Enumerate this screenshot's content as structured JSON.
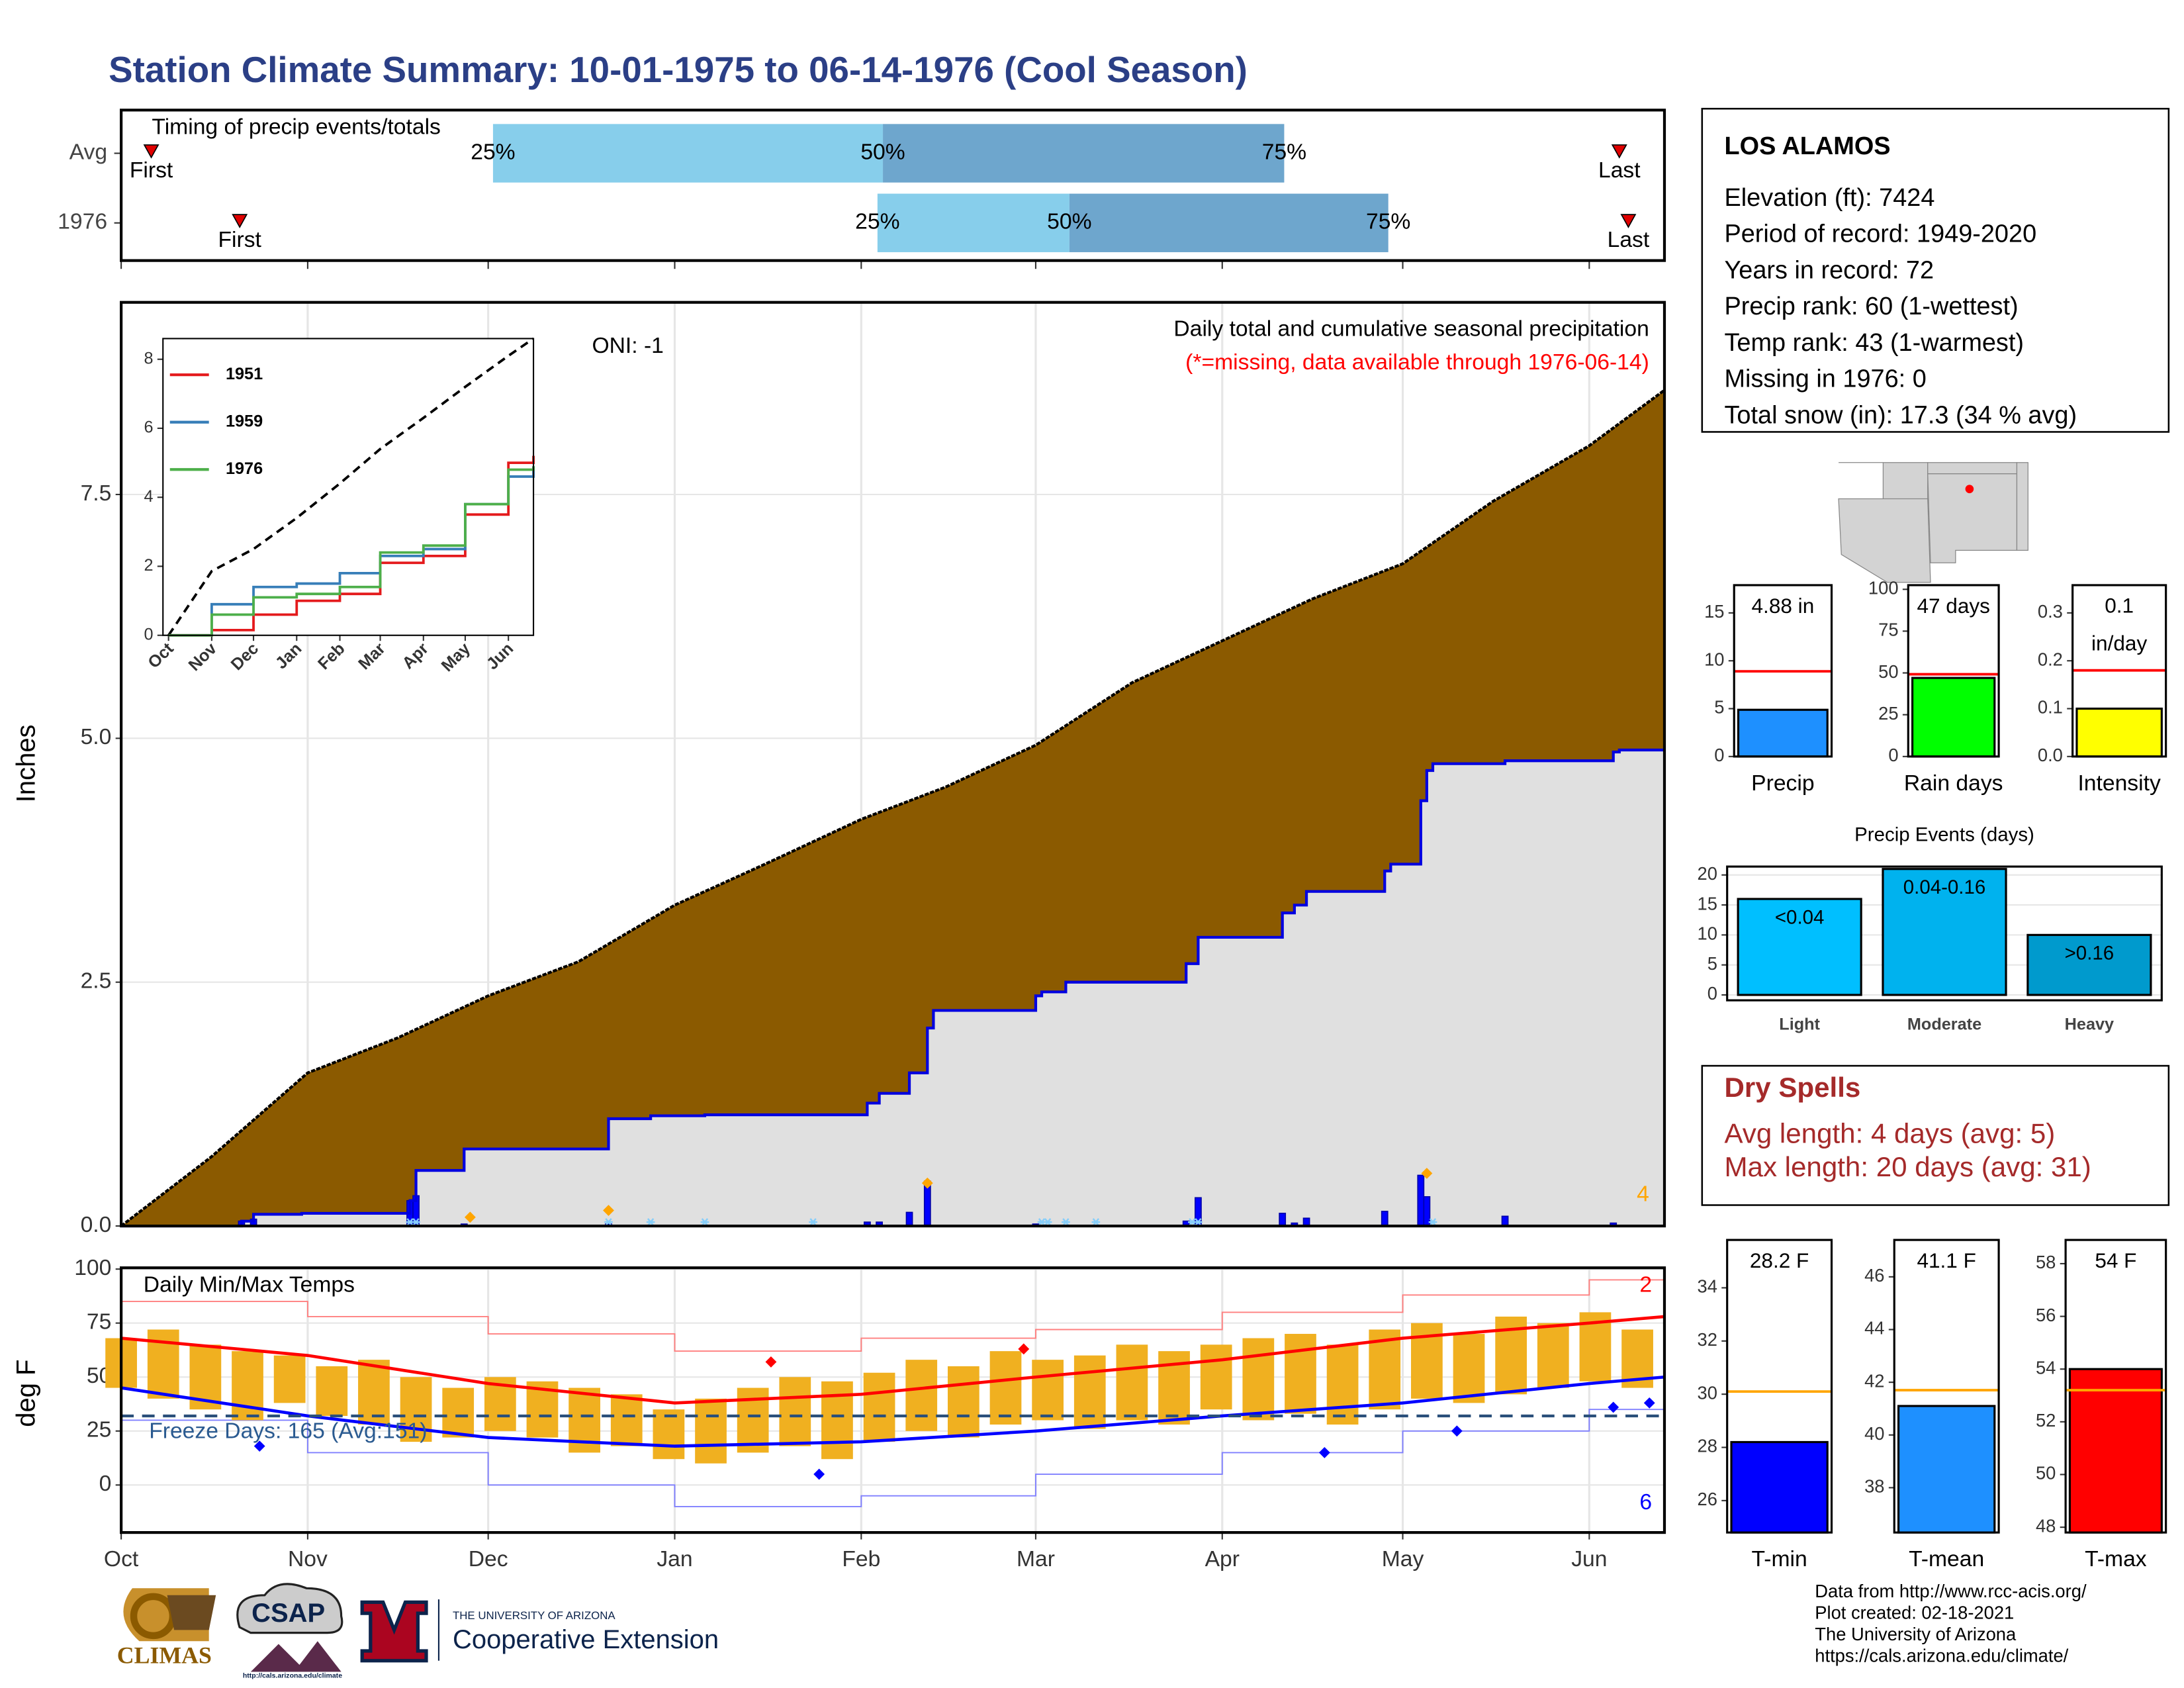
{
  "title": "Station Climate Summary: 10-01-1975 to 06-14-1976 (Cool Season)",
  "station": {
    "name": "LOS ALAMOS",
    "lines": [
      "Elevation (ft): 7424",
      "Period of record: 1949-2020",
      "Years in record: 72",
      "Precip rank: 60 (1-wettest)",
      "Temp rank: 43 (1-warmest)",
      "Missing in 1976: 0",
      "Total snow (in): 17.3 (34 % avg)"
    ]
  },
  "dry_spells": {
    "title": "Dry Spells",
    "lines": [
      "Avg length: 4 days (avg: 5)",
      "Max length: 20 days (avg: 31)"
    ]
  },
  "footer": [
    "Data from http://www.rcc-acis.org/",
    "Plot created: 02-18-2021",
    "The University of Arizona",
    "https://cals.arizona.edu/climate/"
  ],
  "logos": {
    "climas": "CLIMAS",
    "csap": "CSAP",
    "csap_url": "http://cals.arizona.edu/climate",
    "ua_small": "THE UNIVERSITY OF ARIZONA",
    "ua_big": "Cooperative Extension"
  },
  "chart_data": [
    {
      "type": "timing",
      "title": "Timing of precip events/totals",
      "categories": [
        "Avg",
        "1976"
      ],
      "xlim": [
        0,
        256.5
      ],
      "rows": [
        {
          "first": 5,
          "quartiles": [
            61.8,
            126.6,
            193.3
          ],
          "last": 249
        },
        {
          "first": 19.7,
          "quartiles": [
            125.7,
            157.6,
            210.6
          ],
          "last": 250.5
        }
      ],
      "quartile_labels": [
        "25%",
        "50%",
        "75%"
      ],
      "first_label": "First",
      "last_label": "Last",
      "colors": [
        "#87ceeb",
        "#6ea6cd"
      ],
      "marker_color": "#e00000"
    },
    {
      "type": "area",
      "title": "Daily total and cumulative seasonal precipitation",
      "subtitle": "(*=missing, data available through 1976-06-14)",
      "oni": "ONI: -1",
      "snow_count": 4,
      "ylabel": "Inches",
      "xlim": [
        0,
        256.5
      ],
      "ylim": [
        0,
        9.47
      ],
      "xticks": [
        0,
        31,
        61,
        92,
        123,
        152,
        183,
        213,
        244
      ],
      "yticks": [
        {
          "value": 0,
          "label": "0.0"
        },
        2.5,
        {
          "value": 5,
          "label": "5.0"
        },
        7.5
      ],
      "grid": true,
      "average": {
        "color": "#8b5a00",
        "x": [
          0,
          15,
          31,
          46,
          61,
          76,
          92,
          107,
          123,
          137,
          152,
          168,
          183,
          198,
          213,
          228,
          244,
          256.5
        ],
        "values": [
          0,
          0.71,
          1.57,
          1.93,
          2.36,
          2.71,
          3.29,
          3.71,
          4.17,
          4.5,
          4.93,
          5.57,
          6.0,
          6.43,
          6.79,
          7.43,
          8.0,
          8.57
        ]
      },
      "cumulative": {
        "color": "#0000e0",
        "fill": "#e0e0e0",
        "x": [
          0,
          20,
          22,
          30,
          48,
          49,
          57,
          81,
          88,
          97,
          124,
          126,
          131,
          134,
          135,
          152,
          153,
          157,
          177,
          179,
          193,
          195,
          197,
          210,
          211,
          216,
          217,
          218,
          230,
          248,
          249
        ],
        "values": [
          0,
          0.05,
          0.12,
          0.13,
          0.26,
          0.57,
          0.79,
          1.1,
          1.13,
          1.14,
          1.26,
          1.36,
          1.57,
          2.03,
          2.21,
          2.36,
          2.4,
          2.5,
          2.69,
          2.96,
          3.21,
          3.29,
          3.43,
          3.64,
          3.71,
          4.36,
          4.67,
          4.74,
          4.77,
          4.86,
          4.88
        ]
      },
      "daily": {
        "color": "#0000ff",
        "x": [
          20,
          22,
          48,
          49,
          57,
          81,
          124,
          126,
          131,
          134,
          152,
          177,
          179,
          193,
          195,
          197,
          210,
          216,
          217,
          230,
          248
        ],
        "values": [
          0.05,
          0.07,
          0.26,
          0.31,
          0.02,
          0.02,
          0.04,
          0.04,
          0.14,
          0.46,
          0.02,
          0.05,
          0.29,
          0.13,
          0.03,
          0.08,
          0.15,
          0.52,
          0.3,
          0.1,
          0.03
        ]
      },
      "snow": {
        "color": "#ffa500",
        "x": [
          58,
          81,
          134,
          217
        ],
        "values": [
          0.09,
          0.16,
          0.44,
          0.54
        ]
      },
      "missing": {
        "color": "#87cefa",
        "x": [
          48,
          49,
          81,
          88,
          97,
          115,
          153,
          154,
          157,
          162,
          178,
          179,
          218
        ],
        "values": [
          0.04,
          0.04,
          0.04,
          0.04,
          0.04,
          0.04,
          0.04,
          0.04,
          0.04,
          0.04,
          0.04,
          0.04,
          0.04
        ]
      }
    },
    {
      "type": "line",
      "xlim": [
        -4,
        262
      ],
      "ylim": [
        0,
        8.6
      ],
      "xticks": [
        {
          "value": 0,
          "label": "Oct"
        },
        {
          "value": 31,
          "label": "Nov"
        },
        {
          "value": 61,
          "label": "Dec"
        },
        {
          "value": 92,
          "label": "Jan"
        },
        {
          "value": 123,
          "label": "Feb"
        },
        {
          "value": 152,
          "label": "Mar"
        },
        {
          "value": 183,
          "label": "Apr"
        },
        {
          "value": 213,
          "label": "May"
        },
        {
          "value": 244,
          "label": "Jun"
        }
      ],
      "yticks": [
        0,
        2,
        4,
        6,
        8
      ],
      "average": {
        "color": "#000000",
        "x": [
          0,
          31,
          61,
          92,
          123,
          152,
          183,
          213,
          244,
          262
        ],
        "values": [
          0,
          1.86,
          2.5,
          3.4,
          4.4,
          5.4,
          6.3,
          7.2,
          8.1,
          8.6
        ]
      },
      "series": [
        {
          "name": "1951",
          "color": "#e41a1c",
          "x": [
            0,
            31,
            61,
            92,
            123,
            152,
            183,
            213,
            244,
            262
          ],
          "values": [
            0,
            0.15,
            0.6,
            1.0,
            1.2,
            2.1,
            2.3,
            3.5,
            5.0,
            5.2
          ]
        },
        {
          "name": "1959",
          "color": "#377eb8",
          "x": [
            0,
            31,
            61,
            92,
            123,
            152,
            183,
            213,
            244,
            262
          ],
          "values": [
            0,
            0.9,
            1.4,
            1.5,
            1.8,
            2.3,
            2.5,
            3.8,
            4.6,
            4.9
          ]
        },
        {
          "name": "1976",
          "color": "#4daf4a",
          "x": [
            0,
            31,
            61,
            92,
            123,
            152,
            183,
            213,
            244,
            262
          ],
          "values": [
            0,
            0.6,
            1.1,
            1.2,
            1.4,
            2.4,
            2.6,
            3.8,
            4.8,
            4.9
          ]
        }
      ]
    },
    {
      "type": "temperature",
      "title": "Daily Min/Max Temps",
      "freeze_label": "Freeze Days: 165 (Avg:151)",
      "freeze_line": 32,
      "record_high_count": 2,
      "record_low_count": 6,
      "ylabel": "deg F",
      "xlim": [
        0,
        256.5
      ],
      "ylim": [
        -22,
        100.6
      ],
      "xticks": [
        {
          "value": 0,
          "label": "Oct"
        },
        {
          "value": 31,
          "label": "Nov"
        },
        {
          "value": 61,
          "label": "Dec"
        },
        {
          "value": 92,
          "label": "Jan"
        },
        {
          "value": 123,
          "label": "Feb"
        },
        {
          "value": 152,
          "label": "Mar"
        },
        {
          "value": 183,
          "label": "Apr"
        },
        {
          "value": 213,
          "label": "May"
        },
        {
          "value": 244,
          "label": "Jun"
        }
      ],
      "yticks": [
        0,
        25,
        50,
        75,
        100
      ],
      "grid": true,
      "daily": {
        "color": "#f0b020",
        "x": [
          0,
          7,
          14,
          21,
          28,
          35,
          42,
          49,
          56,
          63,
          70,
          77,
          84,
          91,
          98,
          105,
          112,
          119,
          126,
          133,
          140,
          147,
          154,
          161,
          168,
          175,
          182,
          189,
          196,
          203,
          210,
          217,
          224,
          231,
          238,
          245,
          252
        ],
        "min": [
          45,
          40,
          35,
          30,
          38,
          32,
          28,
          20,
          22,
          25,
          22,
          15,
          18,
          12,
          10,
          15,
          18,
          12,
          20,
          25,
          22,
          28,
          30,
          26,
          30,
          28,
          35,
          30,
          33,
          28,
          35,
          40,
          38,
          42,
          45,
          48,
          45
        ],
        "max": [
          68,
          72,
          65,
          62,
          60,
          55,
          58,
          50,
          45,
          50,
          48,
          45,
          42,
          35,
          40,
          45,
          50,
          48,
          52,
          58,
          55,
          62,
          58,
          60,
          65,
          62,
          65,
          68,
          70,
          65,
          72,
          75,
          70,
          78,
          75,
          80,
          72
        ]
      },
      "normal_max": {
        "color": "#ff0000",
        "x": [
          0,
          31,
          61,
          92,
          123,
          152,
          183,
          213,
          244,
          256.5
        ],
        "values": [
          68,
          60,
          47,
          38,
          42,
          50,
          58,
          68,
          75,
          78
        ]
      },
      "normal_min": {
        "color": "#0000ff",
        "x": [
          0,
          31,
          61,
          92,
          123,
          152,
          183,
          213,
          244,
          256.5
        ],
        "values": [
          45,
          32,
          22,
          18,
          20,
          25,
          32,
          38,
          47,
          50
        ]
      },
      "record_max": {
        "color": "#ff8080",
        "x": [
          0,
          31,
          61,
          92,
          123,
          152,
          183,
          213,
          244,
          256.5
        ],
        "values": [
          85,
          78,
          70,
          62,
          68,
          72,
          80,
          88,
          95,
          98
        ]
      },
      "record_min": {
        "color": "#8080ff",
        "x": [
          0,
          31,
          61,
          92,
          123,
          152,
          183,
          213,
          244,
          256.5
        ],
        "values": [
          30,
          15,
          0,
          -10,
          -5,
          5,
          15,
          25,
          35,
          38
        ]
      },
      "record_highs": {
        "color": "#ff0000",
        "x": [
          108,
          150
        ],
        "values": [
          57,
          63
        ]
      },
      "record_lows": {
        "color": "#0000ff",
        "x": [
          23,
          116,
          200,
          222,
          248,
          254
        ],
        "values": [
          18,
          5,
          15,
          25,
          36,
          38
        ]
      }
    },
    {
      "type": "bar",
      "categories": [
        "Precip"
      ],
      "values": [
        4.88
      ],
      "value_labels": [
        "4.88 in"
      ],
      "color": "#1e90ff",
      "average": 8.9,
      "average_color": "#ff0000",
      "ylim": [
        0,
        17.9
      ],
      "yticks": [
        0,
        5,
        10,
        15
      ]
    },
    {
      "type": "bar",
      "categories": [
        "Rain days"
      ],
      "values": [
        47
      ],
      "value_labels": [
        "47 days"
      ],
      "color": "#00ff00",
      "average": 49.2,
      "average_color": "#ff0000",
      "ylim": [
        0,
        102.5
      ],
      "yticks": [
        0,
        25,
        50,
        75,
        100
      ]
    },
    {
      "type": "bar",
      "categories": [
        "Intensity"
      ],
      "values": [
        0.1
      ],
      "value_labels": [
        "0.1 in/day"
      ],
      "color": "#ffff00",
      "average": 0.18,
      "average_color": "#ff0000",
      "ylim": [
        0,
        0.358
      ],
      "yticks": [
        {
          "value": 0,
          "label": "0.0"
        },
        0.1,
        0.2,
        0.3
      ]
    },
    {
      "type": "bar",
      "title": "Precip Events (days)",
      "categories": [
        "Light",
        "Moderate",
        "Heavy"
      ],
      "values": [
        16,
        21,
        10
      ],
      "bar_labels": [
        "<0.04",
        "0.04-0.16",
        ">0.16"
      ],
      "colors": [
        "#00bfff",
        "#00b2ee",
        "#009acd"
      ],
      "ylim": [
        -0.9,
        21.4
      ],
      "yticks": [
        0,
        5,
        10,
        15,
        20
      ],
      "grid": true
    },
    {
      "type": "bar",
      "categories": [
        "T-min"
      ],
      "values": [
        28.2
      ],
      "value_labels": [
        "28.2 F"
      ],
      "color": "#0000ff",
      "average": 30.1,
      "average_color": "#ffa500",
      "ylim": [
        24.8,
        35.8
      ],
      "yticks": [
        26,
        28,
        30,
        32,
        34
      ]
    },
    {
      "type": "bar",
      "categories": [
        "T-mean"
      ],
      "values": [
        41.1
      ],
      "value_labels": [
        "41.1 F"
      ],
      "color": "#1e90ff",
      "average": 41.7,
      "average_color": "#ffa500",
      "ylim": [
        36.3,
        47.4
      ],
      "yticks": [
        38,
        40,
        42,
        44,
        46
      ]
    },
    {
      "type": "bar",
      "categories": [
        "T-max"
      ],
      "values": [
        54
      ],
      "value_labels": [
        "54 F"
      ],
      "color": "#ff0000",
      "average": 53.2,
      "average_color": "#ffa500",
      "ylim": [
        47.8,
        58.9
      ],
      "yticks": [
        48,
        50,
        52,
        54,
        56,
        58
      ]
    }
  ]
}
